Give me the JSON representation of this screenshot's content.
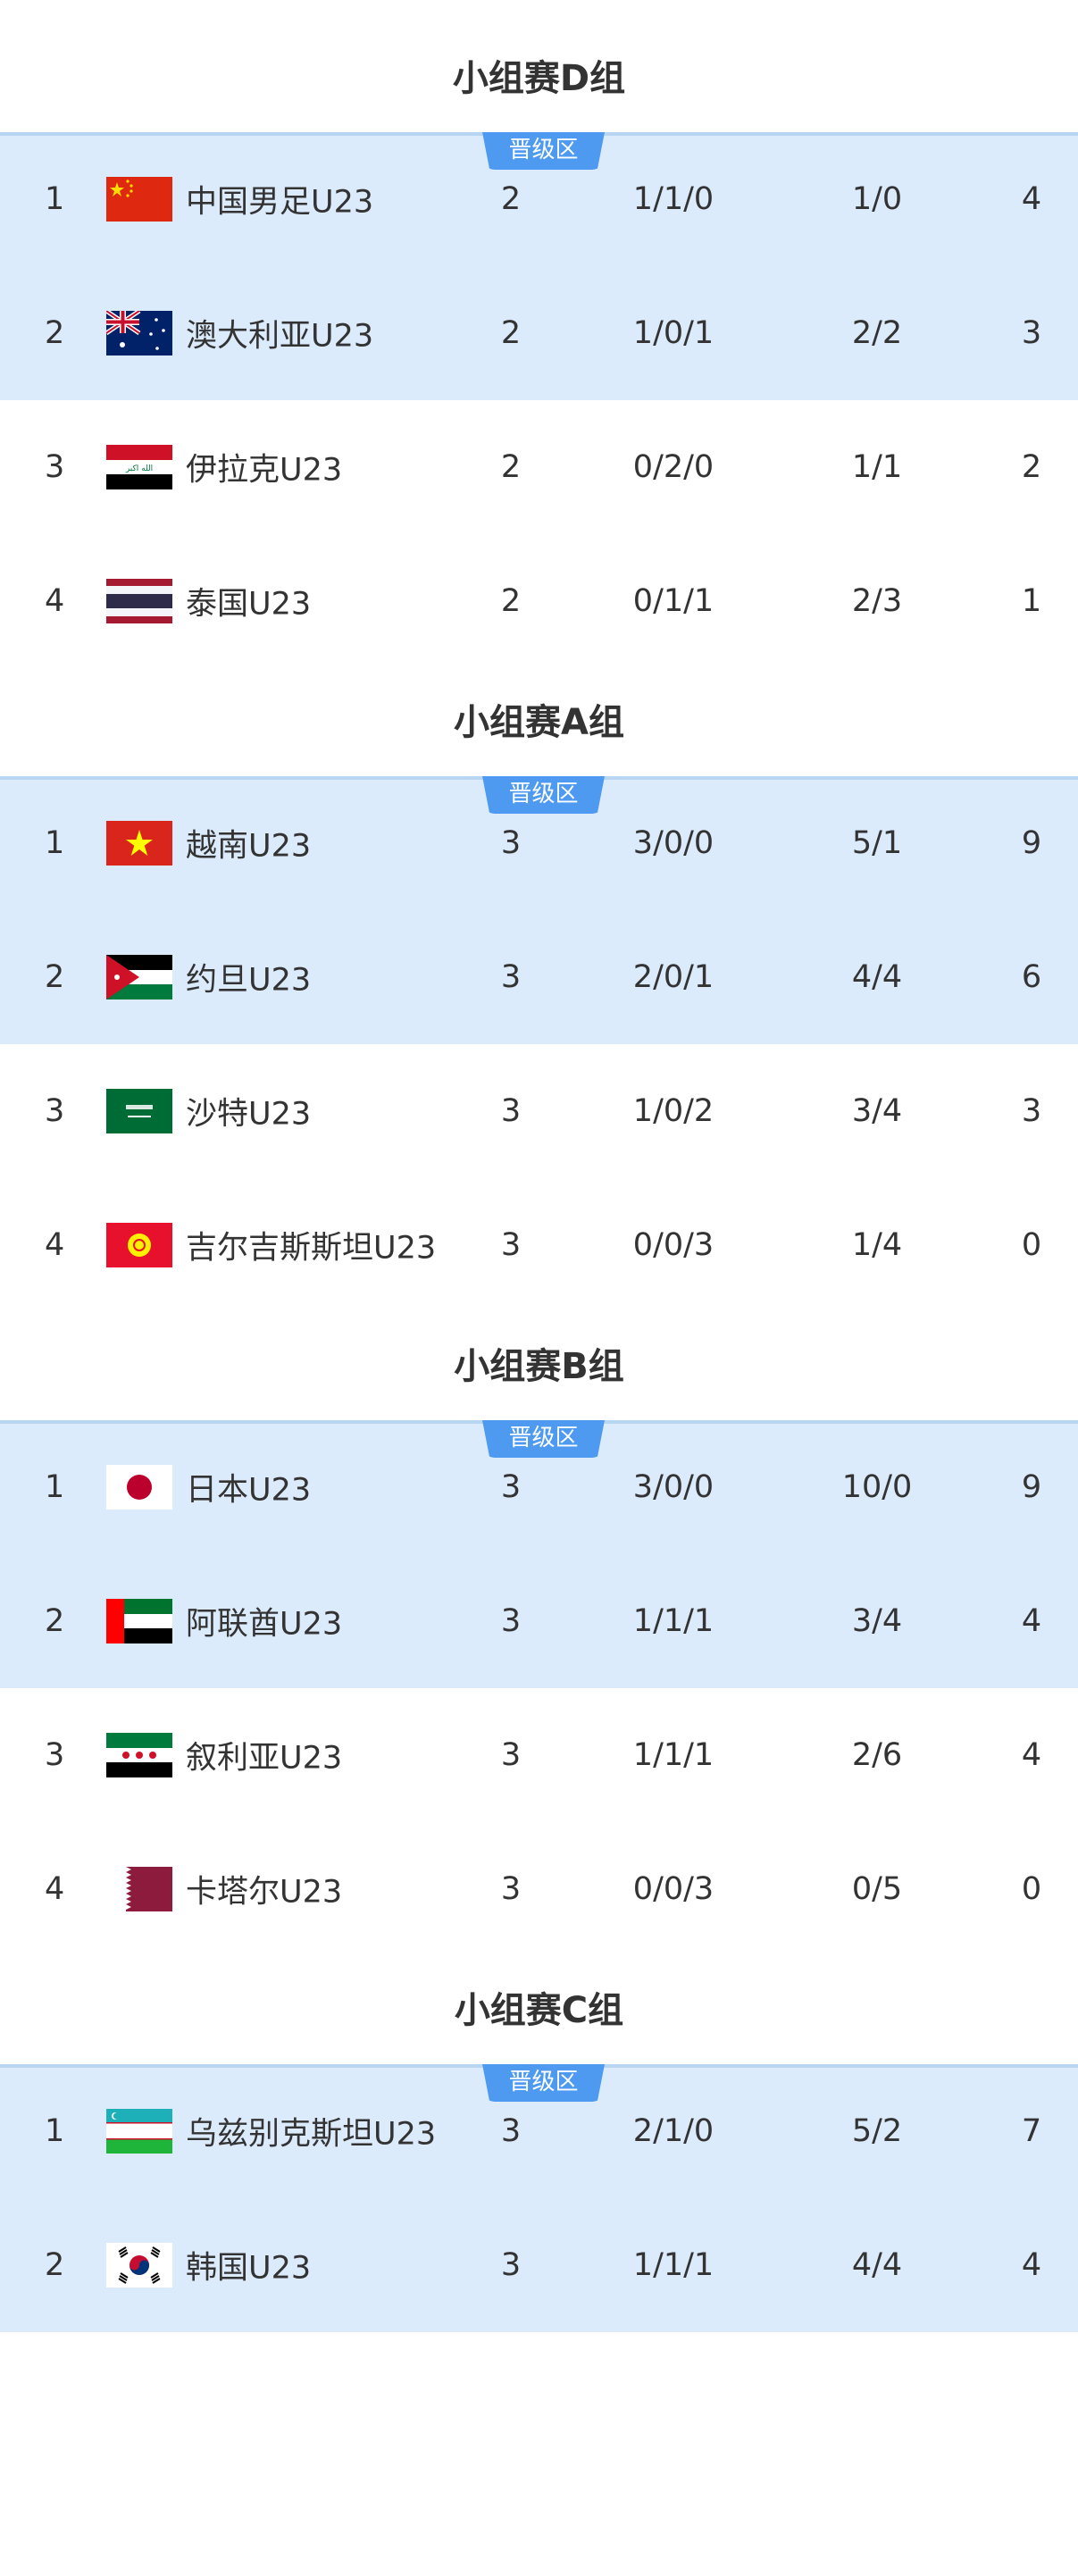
{
  "badge_label": "晋级区",
  "colors": {
    "zone_bg": "#dcebfc",
    "badge": "#4d9af0",
    "text": "#333333"
  },
  "groups": [
    {
      "title": "小组赛D组",
      "rows": [
        {
          "rank": "1",
          "flag": "china-flag-icon",
          "name": "中国男足U23",
          "played": "2",
          "wdl": "1/1/0",
          "goals": "1/0",
          "points": "4"
        },
        {
          "rank": "2",
          "flag": "australia-flag-icon",
          "name": "澳大利亚U23",
          "played": "2",
          "wdl": "1/0/1",
          "goals": "2/2",
          "points": "3"
        },
        {
          "rank": "3",
          "flag": "iraq-flag-icon",
          "name": "伊拉克U23",
          "played": "2",
          "wdl": "0/2/0",
          "goals": "1/1",
          "points": "2"
        },
        {
          "rank": "4",
          "flag": "thailand-flag-icon",
          "name": "泰国U23",
          "played": "2",
          "wdl": "0/1/1",
          "goals": "2/3",
          "points": "1"
        }
      ]
    },
    {
      "title": "小组赛A组",
      "rows": [
        {
          "rank": "1",
          "flag": "vietnam-flag-icon",
          "name": "越南U23",
          "played": "3",
          "wdl": "3/0/0",
          "goals": "5/1",
          "points": "9"
        },
        {
          "rank": "2",
          "flag": "jordan-flag-icon",
          "name": "约旦U23",
          "played": "3",
          "wdl": "2/0/1",
          "goals": "4/4",
          "points": "6"
        },
        {
          "rank": "3",
          "flag": "saudi-arabia-flag-icon",
          "name": "沙特U23",
          "played": "3",
          "wdl": "1/0/2",
          "goals": "3/4",
          "points": "3"
        },
        {
          "rank": "4",
          "flag": "kyrgyzstan-flag-icon",
          "name": "吉尔吉斯斯坦U23",
          "played": "3",
          "wdl": "0/0/3",
          "goals": "1/4",
          "points": "0"
        }
      ]
    },
    {
      "title": "小组赛B组",
      "rows": [
        {
          "rank": "1",
          "flag": "japan-flag-icon",
          "name": "日本U23",
          "played": "3",
          "wdl": "3/0/0",
          "goals": "10/0",
          "points": "9"
        },
        {
          "rank": "2",
          "flag": "uae-flag-icon",
          "name": "阿联酋U23",
          "played": "3",
          "wdl": "1/1/1",
          "goals": "3/4",
          "points": "4"
        },
        {
          "rank": "3",
          "flag": "syria-flag-icon",
          "name": "叙利亚U23",
          "played": "3",
          "wdl": "1/1/1",
          "goals": "2/6",
          "points": "4"
        },
        {
          "rank": "4",
          "flag": "qatar-flag-icon",
          "name": "卡塔尔U23",
          "played": "3",
          "wdl": "0/0/3",
          "goals": "0/5",
          "points": "0"
        }
      ]
    },
    {
      "title": "小组赛C组",
      "rows": [
        {
          "rank": "1",
          "flag": "uzbekistan-flag-icon",
          "name": "乌兹别克斯坦U23",
          "played": "3",
          "wdl": "2/1/0",
          "goals": "5/2",
          "points": "7"
        },
        {
          "rank": "2",
          "flag": "south-korea-flag-icon",
          "name": "韩国U23",
          "played": "3",
          "wdl": "1/1/1",
          "goals": "4/4",
          "points": "4"
        }
      ]
    }
  ]
}
